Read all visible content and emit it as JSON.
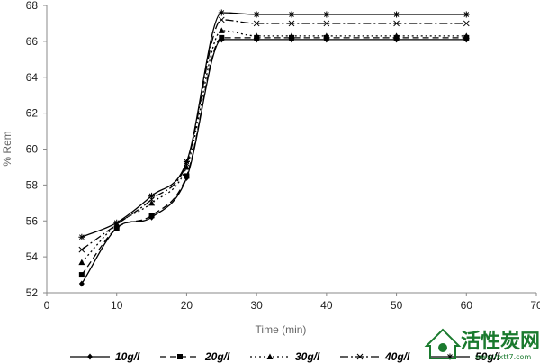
{
  "chart_data": {
    "type": "line",
    "xlabel": "Time  (min)",
    "ylabel": "% Rem",
    "xlim": [
      0,
      70
    ],
    "ylim": [
      52,
      68
    ],
    "xticks": [
      0,
      10,
      20,
      30,
      40,
      50,
      60,
      70
    ],
    "yticks": [
      52,
      54,
      56,
      58,
      60,
      62,
      64,
      66,
      68
    ],
    "grid": false,
    "legend_position": "bottom",
    "x": [
      5,
      10,
      15,
      20,
      25,
      30,
      35,
      40,
      50,
      60
    ],
    "series": [
      {
        "name": "10g/l",
        "values": [
          52.5,
          55.6,
          56.2,
          58.4,
          66.1,
          66.1,
          66.1,
          66.1,
          66.1,
          66.1
        ],
        "marker": "diamond",
        "dash": "solid"
      },
      {
        "name": "20g/l",
        "values": [
          53.0,
          55.6,
          56.3,
          58.5,
          66.2,
          66.2,
          66.2,
          66.2,
          66.2,
          66.2
        ],
        "marker": "square",
        "dash": "dash"
      },
      {
        "name": "30g/l",
        "values": [
          53.7,
          55.8,
          57.0,
          59.0,
          66.6,
          66.3,
          66.3,
          66.3,
          66.3,
          66.3
        ],
        "marker": "triangle",
        "dash": "dot"
      },
      {
        "name": "40g/l",
        "values": [
          54.4,
          55.8,
          57.2,
          59.2,
          67.2,
          67.0,
          67.0,
          67.0,
          67.0,
          67.0
        ],
        "marker": "x",
        "dash": "dashdot"
      },
      {
        "name": "50g/l",
        "values": [
          55.1,
          55.9,
          57.4,
          59.3,
          67.6,
          67.5,
          67.5,
          67.5,
          67.5,
          67.5
        ],
        "marker": "star",
        "dash": "solid"
      }
    ]
  },
  "watermark": {
    "text": "活性炭网",
    "url": "www.hxtt7.com"
  }
}
